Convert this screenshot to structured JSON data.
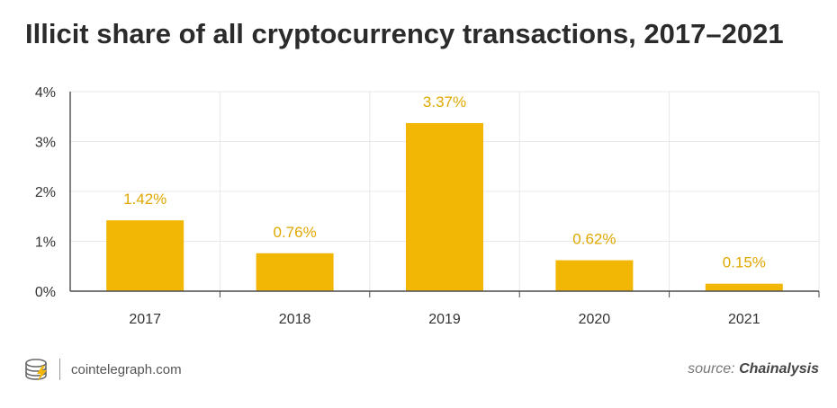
{
  "chart_data": {
    "type": "bar",
    "title": "Illicit share of all cryptocurrency transactions, 2017–2021",
    "categories": [
      "2017",
      "2018",
      "2019",
      "2020",
      "2021"
    ],
    "values": [
      1.42,
      0.76,
      3.37,
      0.62,
      0.15
    ],
    "value_labels": [
      "1.42%",
      "0.76%",
      "3.37%",
      "0.62%",
      "0.15%"
    ],
    "ylim": [
      0,
      4
    ],
    "yticks": [
      0,
      1,
      2,
      3,
      4
    ],
    "ytick_labels": [
      "0%",
      "1%",
      "2%",
      "3%",
      "4%"
    ],
    "xlabel": "",
    "ylabel": "",
    "grid": true,
    "bar_color": "#f2b705",
    "label_color": "#e0a800"
  },
  "footer": {
    "site": "cointelegraph.com",
    "source_prefix": "source: ",
    "source_name": "Chainalysis"
  },
  "colors": {
    "grid": "#e8e8e8",
    "axis": "#4a4a4a"
  }
}
